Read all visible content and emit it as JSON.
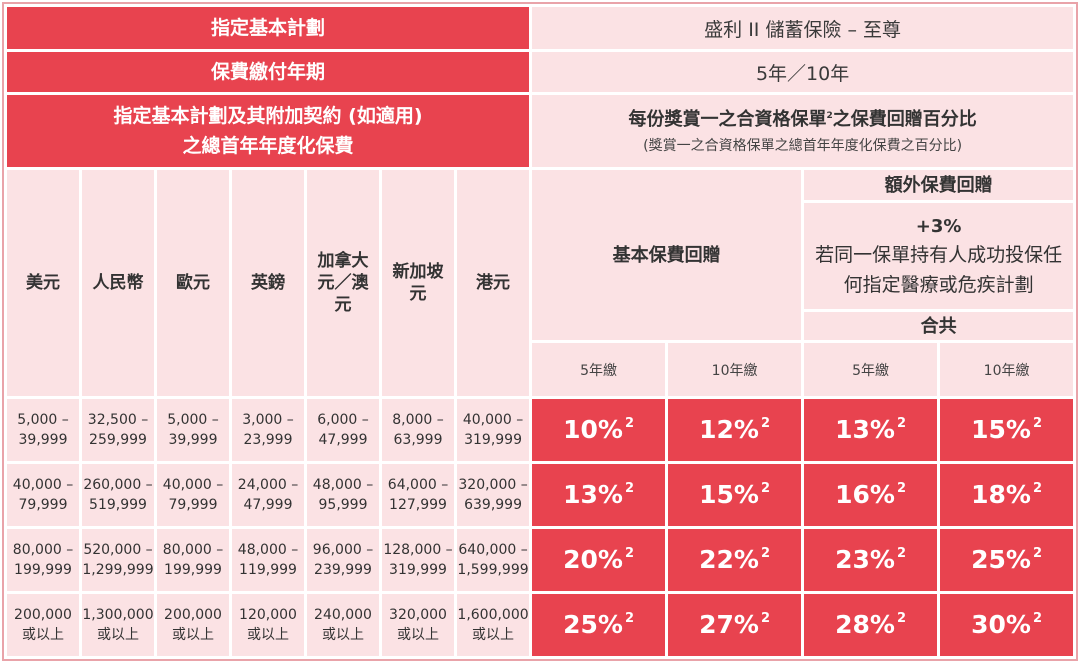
{
  "plan_label": "指定基本計劃",
  "plan_value": "盛利 II 儲蓄保險 – 至尊",
  "term_label": "保費繳付年期",
  "term_value": "5年／10年",
  "premium_label_line1": "指定基本計劃及其附加契約 (如適用)",
  "premium_label_line2": "之總首年年度化保費",
  "rebate_title_pre": "每份獎賞一之合資格保單",
  "rebate_title_sup": "2",
  "rebate_title_post": "之保費回贈百分比",
  "rebate_subtitle": "(獎賞一之合資格保單之總首年年度化保費之百分比)",
  "currencies": [
    "美元",
    "人民幣",
    "歐元",
    "英鎊",
    "加拿大元／澳元",
    "新加坡元",
    "港元"
  ],
  "basic_rebate_label": "基本保費回贈",
  "extra_rebate_label": "額外保費回贈",
  "extra_rebate_value": "+3%",
  "extra_rebate_desc": "若同一保單持有人成功投保任何指定醫療或危疾計劃",
  "total_label": "合共",
  "period_5": "5年繳",
  "period_10": "10年繳",
  "footnote_mark": "2",
  "rows": [
    {
      "ranges": [
        [
          "5,000 –",
          "39,999"
        ],
        [
          "32,500 –",
          "259,999"
        ],
        [
          "5,000 –",
          "39,999"
        ],
        [
          "3,000 –",
          "23,999"
        ],
        [
          "6,000 –",
          "47,999"
        ],
        [
          "8,000 –",
          "63,999"
        ],
        [
          "40,000 –",
          "319,999"
        ]
      ],
      "basic_5": "10%",
      "basic_10": "12%",
      "total_5": "13%",
      "total_10": "15%"
    },
    {
      "ranges": [
        [
          "40,000 –",
          "79,999"
        ],
        [
          "260,000 –",
          "519,999"
        ],
        [
          "40,000 –",
          "79,999"
        ],
        [
          "24,000 –",
          "47,999"
        ],
        [
          "48,000 –",
          "95,999"
        ],
        [
          "64,000 –",
          "127,999"
        ],
        [
          "320,000 –",
          "639,999"
        ]
      ],
      "basic_5": "13%",
      "basic_10": "15%",
      "total_5": "16%",
      "total_10": "18%"
    },
    {
      "ranges": [
        [
          "80,000 –",
          "199,999"
        ],
        [
          "520,000 –",
          "1,299,999"
        ],
        [
          "80,000 –",
          "199,999"
        ],
        [
          "48,000 –",
          "119,999"
        ],
        [
          "96,000 –",
          "239,999"
        ],
        [
          "128,000 –",
          "319,999"
        ],
        [
          "640,000 –",
          "1,599,999"
        ]
      ],
      "basic_5": "20%",
      "basic_10": "22%",
      "total_5": "23%",
      "total_10": "25%"
    },
    {
      "ranges": [
        [
          "200,000",
          "或以上"
        ],
        [
          "1,300,000",
          "或以上"
        ],
        [
          "200,000",
          "或以上"
        ],
        [
          "120,000",
          "或以上"
        ],
        [
          "240,000",
          "或以上"
        ],
        [
          "320,000",
          "或以上"
        ],
        [
          "1,600,000",
          "或以上"
        ]
      ],
      "basic_5": "25%",
      "basic_10": "27%",
      "total_5": "28%",
      "total_10": "30%"
    }
  ]
}
